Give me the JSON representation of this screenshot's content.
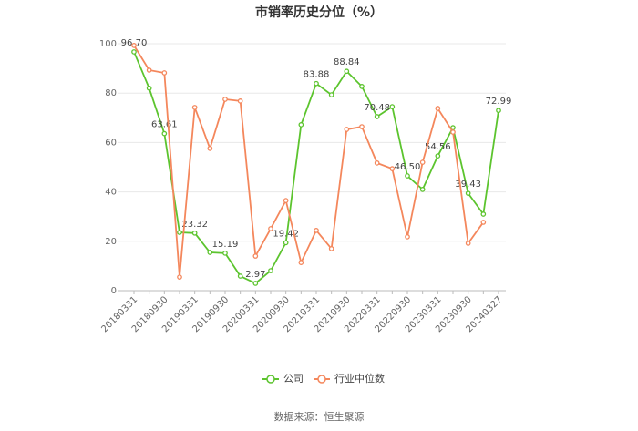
{
  "chart_data": {
    "type": "line",
    "title": "市销率历史分位（%）",
    "categories": [
      "20180331",
      null,
      "20180930",
      null,
      "20190331",
      null,
      "20190930",
      null,
      "20200331",
      null,
      "20200930",
      null,
      "20210331",
      null,
      "20210930",
      null,
      "20220331",
      null,
      "20220930",
      null,
      "20230331",
      null,
      "20230930",
      null,
      "20240327"
    ],
    "series": [
      {
        "name": "公司",
        "color": "#5cc42e",
        "values": [
          96.7,
          82,
          63.61,
          23.6,
          23.32,
          15.5,
          15.19,
          5.9,
          2.97,
          8.1,
          19.42,
          67.2,
          83.88,
          79.3,
          88.84,
          82.7,
          70.48,
          74.5,
          46.5,
          41,
          54.56,
          66,
          39.43,
          31,
          72.99
        ],
        "value_labels": [
          "96.70",
          null,
          "63.61",
          null,
          "23.32",
          null,
          "15.19",
          null,
          "2.97",
          null,
          "19.42",
          null,
          "83.88",
          null,
          "88.84",
          null,
          "70.48",
          null,
          "46.50",
          null,
          "54.56",
          null,
          "39.43",
          null,
          "72.99"
        ]
      },
      {
        "name": "行业中位数",
        "color": "#f4875c",
        "values": [
          99.3,
          89.3,
          88.2,
          5.5,
          74.2,
          57.6,
          77.5,
          76.8,
          14,
          25.1,
          36.5,
          11.4,
          24.4,
          17,
          65.3,
          66.4,
          51.7,
          49.4,
          21.8,
          52,
          73.8,
          64.2,
          19.2,
          27.7,
          null
        ]
      }
    ],
    "ylim": [
      0,
      100
    ],
    "yticks": [
      0,
      20,
      40,
      60,
      80,
      100
    ],
    "grid": true,
    "source": "数据来源：恒生聚源"
  }
}
